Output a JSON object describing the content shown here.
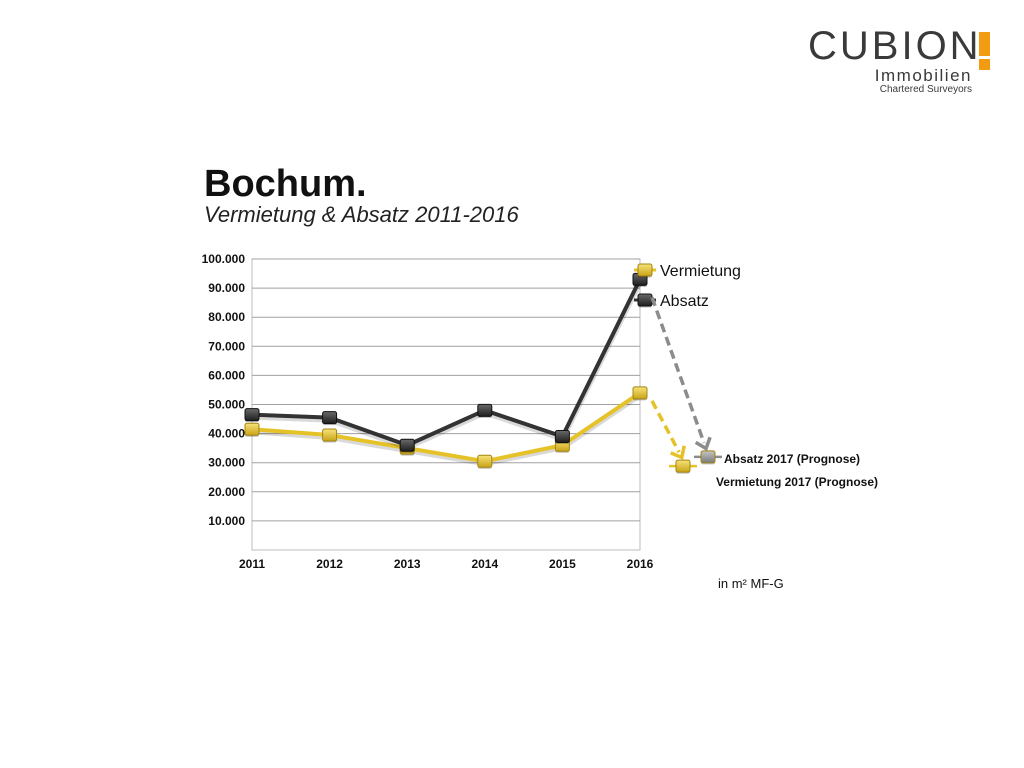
{
  "logo": {
    "word": "CUBION",
    "line1": "Immobilien",
    "line2": "Chartered Surveyors",
    "accent_color": "#f39c12",
    "text_color": "#3a3a3a"
  },
  "header": {
    "title": "Bochum.",
    "subtitle": "Vermietung & Absatz 2011-2016"
  },
  "chart_data": {
    "type": "line",
    "x": [
      "2011",
      "2012",
      "2013",
      "2014",
      "2015",
      "2016"
    ],
    "y_ticks": [
      "10.000",
      "20.000",
      "30.000",
      "40.000",
      "50.000",
      "60.000",
      "70.000",
      "80.000",
      "90.000",
      "100.000"
    ],
    "ylim": [
      0,
      100000
    ],
    "grid": true,
    "legend_placement": "top-right",
    "series": [
      {
        "name": "Vermietung",
        "values": [
          41500,
          39500,
          35000,
          30500,
          36000,
          54000
        ],
        "color": "#e6c229"
      },
      {
        "name": "Absatz",
        "values": [
          46500,
          45500,
          36000,
          48000,
          39000,
          93000
        ],
        "color": "#333333"
      }
    ],
    "forecast": [
      {
        "name": "Absatz 2017 (Prognose)",
        "value": 32000,
        "color": "#8c8c8c"
      },
      {
        "name": "Vermietung 2017 (Prognose)",
        "value": 29500,
        "color": "#e6c229"
      }
    ],
    "unit": "in m² MF-G"
  }
}
